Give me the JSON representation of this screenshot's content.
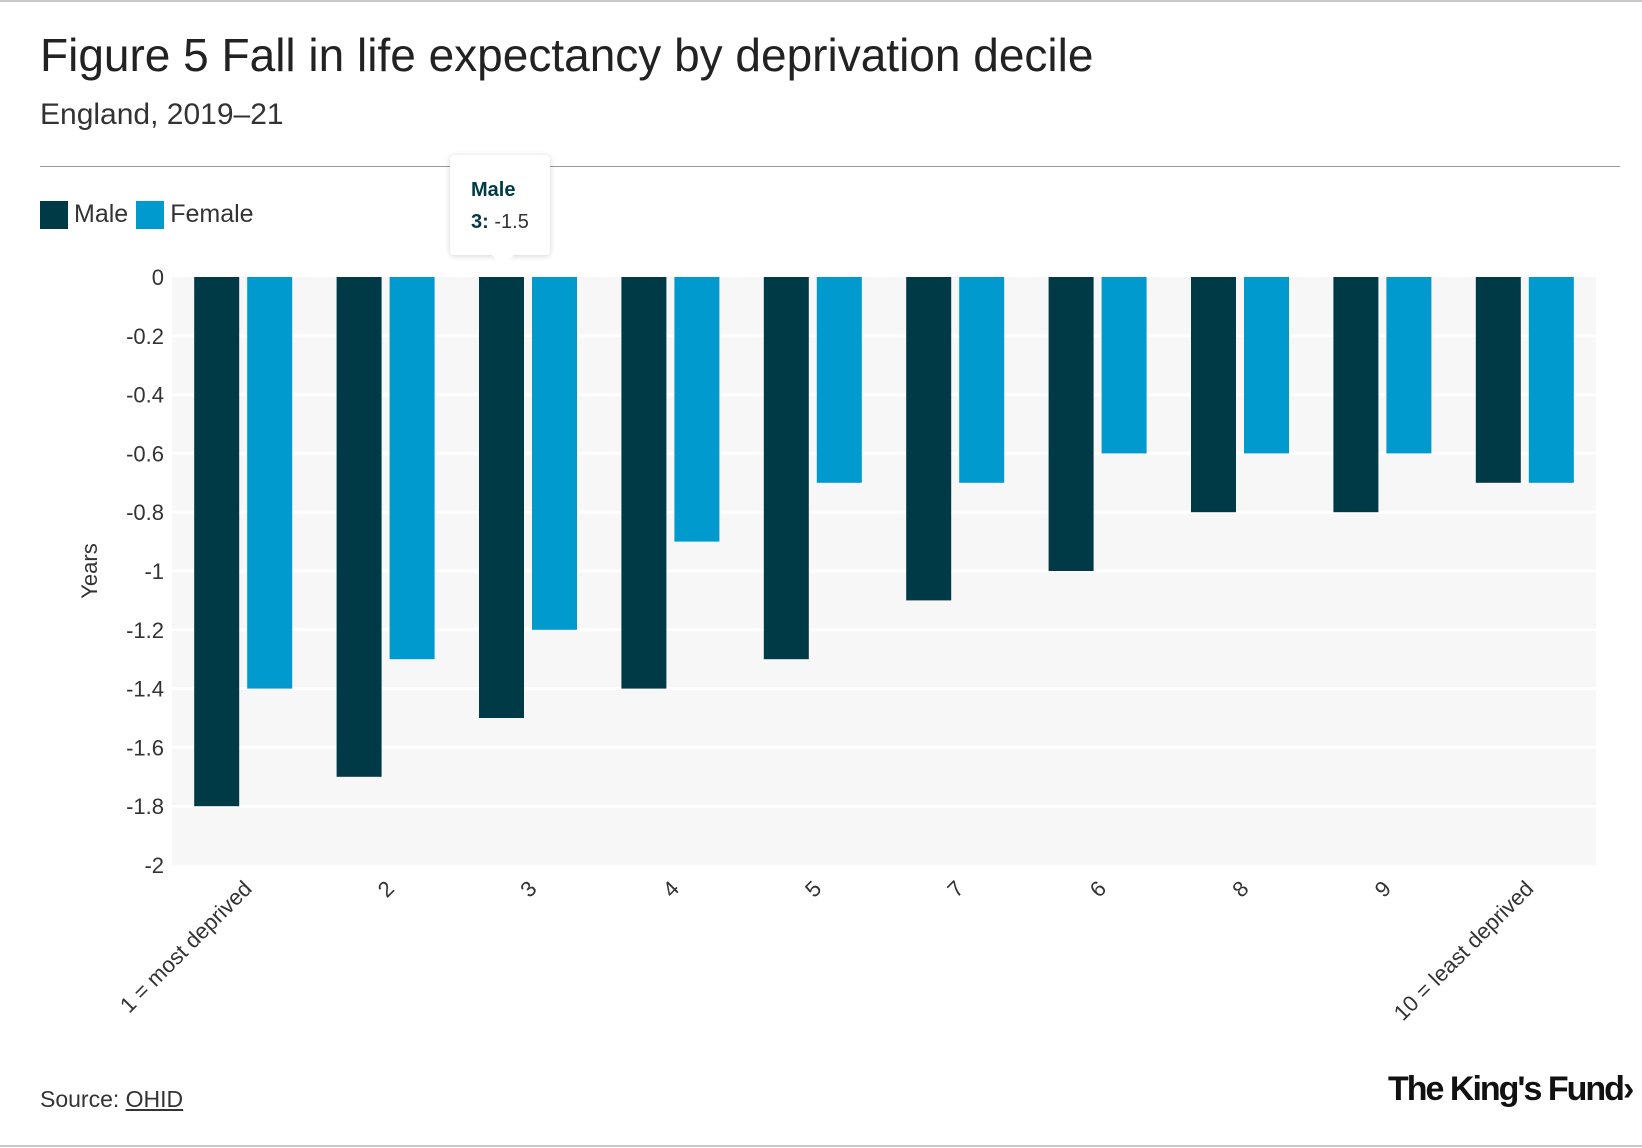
{
  "title": "Figure 5 Fall in life expectancy by deprivation decile",
  "subtitle": "England, 2019–21",
  "legend": [
    {
      "label": "Male",
      "color": "#013a47"
    },
    {
      "label": "Female",
      "color": "#009ace"
    }
  ],
  "tooltip": {
    "series": "Male",
    "category": "3:",
    "value": "-1.5"
  },
  "source": {
    "prefix": "Source: ",
    "link": "OHID"
  },
  "logo": "The King's Fund",
  "logo_icon": "chevron-right-icon",
  "chart_data": {
    "type": "bar",
    "ylabel": "Years",
    "xlabel": "",
    "ylim": [
      -2,
      0
    ],
    "yticks": [
      0,
      -0.2,
      -0.4,
      -0.6,
      -0.8,
      -1,
      -1.2,
      -1.4,
      -1.6,
      -1.8,
      -2
    ],
    "ytick_labels": [
      "0",
      "-0.2",
      "-0.4",
      "-0.6",
      "-0.8",
      "-1",
      "-1.2",
      "-1.4",
      "-1.6",
      "-1.8",
      "-2"
    ],
    "categories": [
      "1 = most deprived",
      "2",
      "3",
      "4",
      "5",
      "7",
      "6",
      "8",
      "9",
      "10 = least deprived"
    ],
    "series": [
      {
        "name": "Male",
        "color": "#013a47",
        "values": [
          -1.8,
          -1.7,
          -1.5,
          -1.4,
          -1.3,
          -1.1,
          -1.0,
          -0.8,
          -0.8,
          -0.7
        ]
      },
      {
        "name": "Female",
        "color": "#009ace",
        "values": [
          -1.4,
          -1.3,
          -1.2,
          -0.9,
          -0.7,
          -0.7,
          -0.6,
          -0.6,
          -0.6,
          -0.7
        ]
      }
    ],
    "grid": true,
    "legend_position": "top-left",
    "plot_background": "#f7f7f7"
  }
}
